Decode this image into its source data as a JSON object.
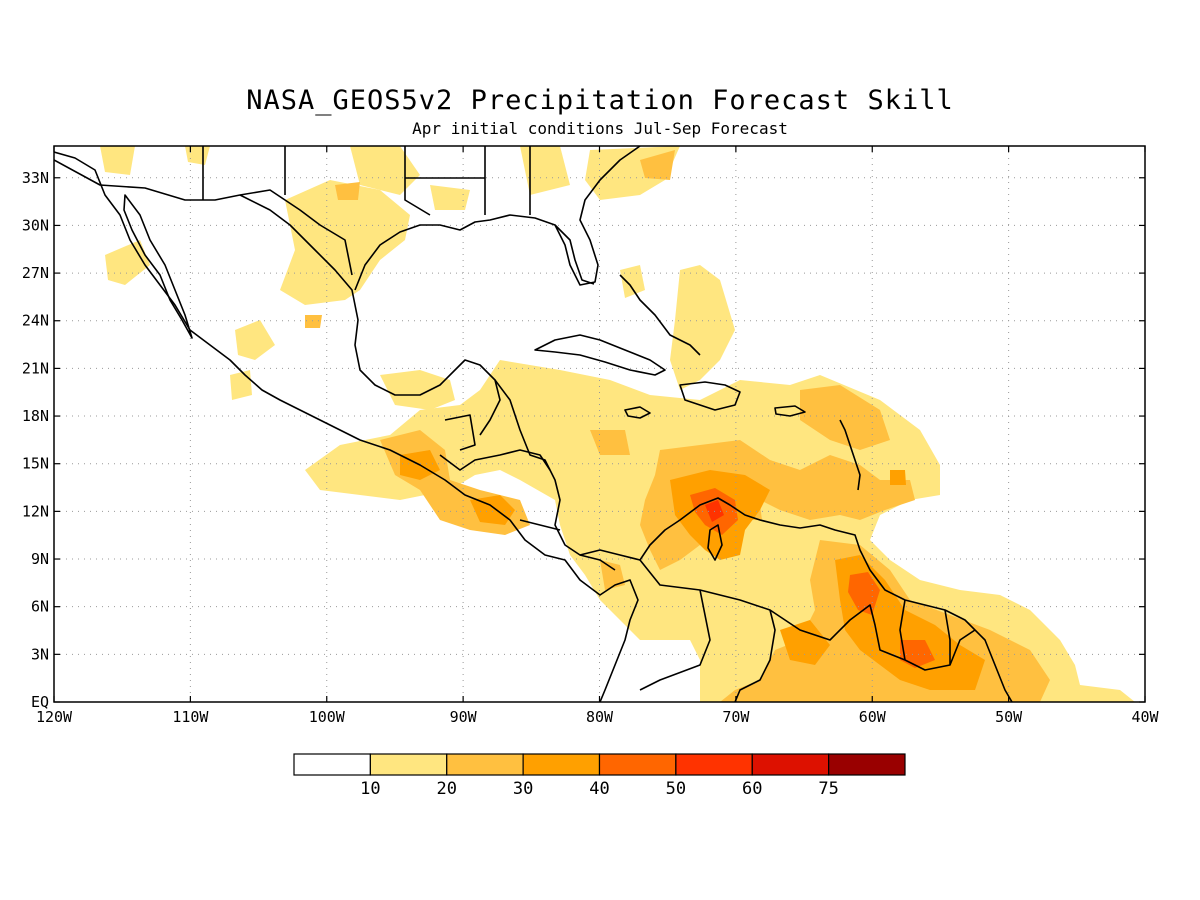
{
  "title": "NASA_GEOS5v2 Precipitation Forecast Skill",
  "subtitle": "Apr initial conditions  Jul-Sep Forecast",
  "map": {
    "lon_range": [
      -120,
      -40
    ],
    "lat_range": [
      0,
      35
    ],
    "grid": true,
    "lon_ticks": [
      {
        "value": -120,
        "label": "120W"
      },
      {
        "value": -110,
        "label": "110W"
      },
      {
        "value": -100,
        "label": "100W"
      },
      {
        "value": -90,
        "label": "90W"
      },
      {
        "value": -80,
        "label": "80W"
      },
      {
        "value": -70,
        "label": "70W"
      },
      {
        "value": -60,
        "label": "60W"
      },
      {
        "value": -50,
        "label": "50W"
      },
      {
        "value": -40,
        "label": "40W"
      }
    ],
    "lat_ticks": [
      {
        "value": 0,
        "label": "EQ"
      },
      {
        "value": 3,
        "label": "3N"
      },
      {
        "value": 6,
        "label": "6N"
      },
      {
        "value": 9,
        "label": "9N"
      },
      {
        "value": 12,
        "label": "12N"
      },
      {
        "value": 15,
        "label": "15N"
      },
      {
        "value": 18,
        "label": "18N"
      },
      {
        "value": 21,
        "label": "21N"
      },
      {
        "value": 24,
        "label": "24N"
      },
      {
        "value": 27,
        "label": "27N"
      },
      {
        "value": 30,
        "label": "30N"
      },
      {
        "value": 33,
        "label": "33N"
      }
    ]
  },
  "colorbar": {
    "levels": [
      "10",
      "20",
      "30",
      "40",
      "50",
      "60",
      "75"
    ],
    "colors": [
      "#ffffff",
      "#ffe680",
      "#ffc040",
      "#ffa000",
      "#ff6600",
      "#ff3300",
      "#dd1100",
      "#990000"
    ]
  }
}
